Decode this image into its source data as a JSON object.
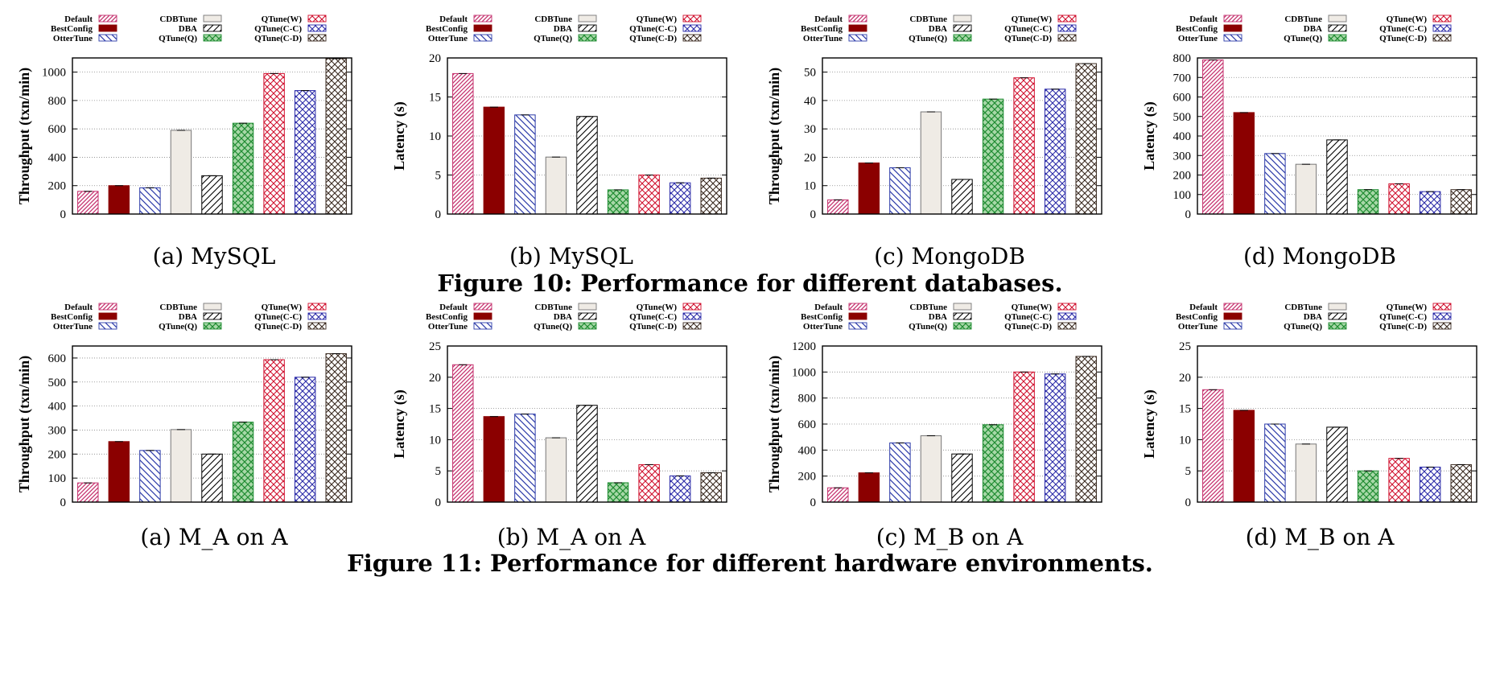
{
  "legend": [
    {
      "name": "Default",
      "color": "#c5316e",
      "pattern": "diag-fine"
    },
    {
      "name": "BestConfig",
      "color": "#8b0000",
      "pattern": "solid"
    },
    {
      "name": "OtterTune",
      "color": "#2b3aa8",
      "pattern": "diag-back"
    },
    {
      "name": "CDBTune",
      "color": "#efebe5",
      "pattern": "plain"
    },
    {
      "name": "DBA",
      "color": "#000000",
      "pattern": "diag-bw"
    },
    {
      "name": "QTune(Q)",
      "color": "#1f8c32",
      "pattern": "cross-fill"
    },
    {
      "name": "QTune(W)",
      "color": "#d0102e",
      "pattern": "cross"
    },
    {
      "name": "QTune(C-C)",
      "color": "#2a2aa8",
      "pattern": "cross"
    },
    {
      "name": "QTune(C-D)",
      "color": "#3a2a20",
      "pattern": "cross"
    }
  ],
  "figures": [
    {
      "caption": "Figure 10: Performance for different databases."
    },
    {
      "caption": "Figure 11: Performance for different hardware environments."
    }
  ],
  "chart_data": [
    {
      "type": "bar",
      "caption": "(a) MySQL",
      "ylabel": "Throughput (txn/min)",
      "ylim": [
        0,
        1100
      ],
      "yticks": [
        0,
        200,
        400,
        600,
        800,
        1000
      ],
      "categories": [
        "Default",
        "BestConfig",
        "OtterTune",
        "CDBTune",
        "DBA",
        "QTune(Q)",
        "QTune(W)",
        "QTune(C-C)",
        "QTune(C-D)"
      ],
      "values": [
        160,
        200,
        185,
        590,
        270,
        640,
        990,
        870,
        1095
      ]
    },
    {
      "type": "bar",
      "caption": "(b) MySQL",
      "ylabel": "Latency (s)",
      "ylim": [
        0,
        20
      ],
      "yticks": [
        0,
        5,
        10,
        15,
        20
      ],
      "categories": [
        "Default",
        "BestConfig",
        "OtterTune",
        "CDBTune",
        "DBA",
        "QTune(Q)",
        "QTune(W)",
        "QTune(C-C)",
        "QTune(C-D)"
      ],
      "values": [
        18,
        13.7,
        12.7,
        7.3,
        12.5,
        3.1,
        5.0,
        4.0,
        4.6
      ]
    },
    {
      "type": "bar",
      "caption": "(c) MongoDB",
      "ylabel": "Throughput (txn/min)",
      "ylim": [
        0,
        55
      ],
      "yticks": [
        0,
        10,
        20,
        30,
        40,
        50
      ],
      "categories": [
        "Default",
        "BestConfig",
        "OtterTune",
        "CDBTune",
        "DBA",
        "QTune(Q)",
        "QTune(W)",
        "QTune(C-C)",
        "QTune(C-D)"
      ],
      "values": [
        5,
        18,
        16.3,
        36,
        12.2,
        40.5,
        48,
        44,
        53
      ]
    },
    {
      "type": "bar",
      "caption": "(d) MongoDB",
      "ylabel": "Latency (s)",
      "ylim": [
        0,
        800
      ],
      "yticks": [
        0,
        100,
        200,
        300,
        400,
        500,
        600,
        700,
        800
      ],
      "categories": [
        "Default",
        "BestConfig",
        "OtterTune",
        "CDBTune",
        "DBA",
        "QTune(Q)",
        "QTune(W)",
        "QTune(C-C)",
        "QTune(C-D)"
      ],
      "values": [
        790,
        520,
        310,
        255,
        380,
        125,
        155,
        115,
        125
      ]
    },
    {
      "type": "bar",
      "caption": "(a) M_A on A",
      "ylabel": "Throughput (txn/min)",
      "ylim": [
        0,
        650
      ],
      "yticks": [
        0,
        100,
        200,
        300,
        400,
        500,
        600
      ],
      "categories": [
        "Default",
        "BestConfig",
        "OtterTune",
        "CDBTune",
        "DBA",
        "QTune(Q)",
        "QTune(W)",
        "QTune(C-C)",
        "QTune(C-D)"
      ],
      "values": [
        80,
        252,
        215,
        302,
        200,
        333,
        593,
        520,
        618
      ]
    },
    {
      "type": "bar",
      "caption": "(b) M_A on A",
      "ylabel": "Latency (s)",
      "ylim": [
        0,
        25
      ],
      "yticks": [
        0,
        5,
        10,
        15,
        20,
        25
      ],
      "categories": [
        "Default",
        "BestConfig",
        "OtterTune",
        "CDBTune",
        "DBA",
        "QTune(Q)",
        "QTune(W)",
        "QTune(C-C)",
        "QTune(C-D)"
      ],
      "values": [
        22,
        13.7,
        14.1,
        10.3,
        15.5,
        3.1,
        6.0,
        4.2,
        4.7
      ]
    },
    {
      "type": "bar",
      "caption": "(c) M_B on A",
      "ylabel": "Throughput (txn/min)",
      "ylim": [
        0,
        1200
      ],
      "yticks": [
        0,
        200,
        400,
        600,
        800,
        1000,
        1200
      ],
      "categories": [
        "Default",
        "BestConfig",
        "OtterTune",
        "CDBTune",
        "DBA",
        "QTune(Q)",
        "QTune(W)",
        "QTune(C-C)",
        "QTune(C-D)"
      ],
      "values": [
        110,
        225,
        455,
        510,
        370,
        595,
        1000,
        985,
        1120
      ]
    },
    {
      "type": "bar",
      "caption": "(d) M_B on A",
      "ylabel": "Latency (s)",
      "ylim": [
        0,
        25
      ],
      "yticks": [
        0,
        5,
        10,
        15,
        20,
        25
      ],
      "categories": [
        "Default",
        "BestConfig",
        "OtterTune",
        "CDBTune",
        "DBA",
        "QTune(Q)",
        "QTune(W)",
        "QTune(C-C)",
        "QTune(C-D)"
      ],
      "values": [
        18,
        14.7,
        12.5,
        9.3,
        12.0,
        5.0,
        7.0,
        5.6,
        6.0
      ]
    }
  ]
}
